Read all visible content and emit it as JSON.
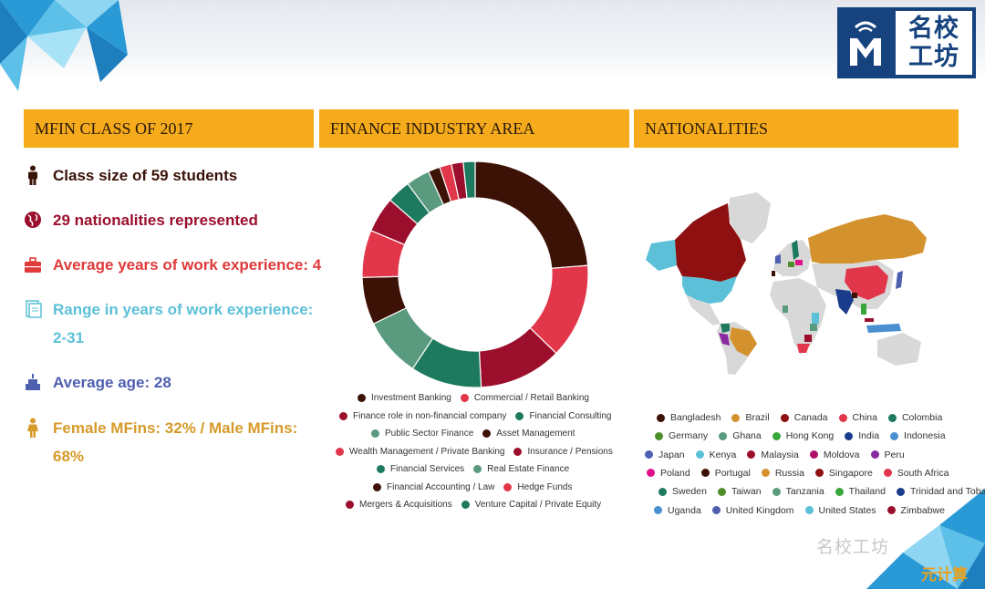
{
  "logo": {
    "line1": "名校",
    "line2": "工坊"
  },
  "sections": {
    "class": "MFIN CLASS OF 2017",
    "industry": "FINANCE INDUSTRY AREA",
    "nationalities": "NATIONALITIES"
  },
  "stats": [
    {
      "icon": "person-icon",
      "color": "#3a1208",
      "line1": "Class size of 59 students",
      "line2": ""
    },
    {
      "icon": "globe-icon",
      "color": "#9c0f2c",
      "line1": "29 nationalities represented",
      "line2": ""
    },
    {
      "icon": "briefcase-icon",
      "color": "#e03a3a",
      "line1": "Average years of work experience: 4",
      "line2": ""
    },
    {
      "icon": "document-icon",
      "color": "#5cc0d8",
      "line1": "Range in years of work experience:",
      "line2": "2-31"
    },
    {
      "icon": "cake-icon",
      "color": "#4f5fb0",
      "line1": "Average age: 28",
      "line2": ""
    },
    {
      "icon": "female-icon",
      "color": "#d69a2a",
      "line1": "Female MFins: 32% / Male MFins:",
      "line2": "68%"
    }
  ],
  "chart_data": {
    "type": "pie",
    "title": "",
    "categories": [
      "Investment Banking",
      "Commercial / Retail Banking",
      "Finance role in non-financial company",
      "Financial Consulting",
      "Public Sector Finance",
      "Asset Management",
      "Wealth Management / Private Banking",
      "Insurance / Pensions",
      "Financial Services",
      "Real Estate Finance",
      "Financial Accounting / Law",
      "Hedge Funds",
      "Mergers & Acquisitions",
      "Venture Capital / Private Equity"
    ],
    "values": [
      14,
      8,
      7,
      6,
      5,
      4,
      4,
      3,
      2,
      2,
      1,
      1,
      1,
      1
    ],
    "colors": [
      "#3d1206",
      "#e2374a",
      "#9c0f2c",
      "#1d7a5e",
      "#5a9a7e",
      "#3d1206",
      "#e2374a",
      "#9c0f2c",
      "#1d7a5e",
      "#5a9a7e",
      "#3d1206",
      "#e2374a",
      "#9c0f2c",
      "#1d7a5e"
    ],
    "legend_placement": "bottom"
  },
  "nationalities": {
    "items": [
      {
        "name": "Bangladesh",
        "color": "#3d1206"
      },
      {
        "name": "Brazil",
        "color": "#d4922e"
      },
      {
        "name": "Canada",
        "color": "#8e1010"
      },
      {
        "name": "China",
        "color": "#e2374a"
      },
      {
        "name": "Colombia",
        "color": "#1d7a5e"
      },
      {
        "name": "Germany",
        "color": "#4f8f2a"
      },
      {
        "name": "Ghana",
        "color": "#5a9a7e"
      },
      {
        "name": "Hong Kong",
        "color": "#39a63b"
      },
      {
        "name": "India",
        "color": "#1a3c8a"
      },
      {
        "name": "Indonesia",
        "color": "#4a8fd0"
      },
      {
        "name": "Japan",
        "color": "#4f5fb0"
      },
      {
        "name": "Kenya",
        "color": "#5cc0d8"
      },
      {
        "name": "Malaysia",
        "color": "#9c0f2c"
      },
      {
        "name": "Moldova",
        "color": "#b0106a"
      },
      {
        "name": "Peru",
        "color": "#8a2aa0"
      },
      {
        "name": "Poland",
        "color": "#e0108a"
      },
      {
        "name": "Portugal",
        "color": "#3d1206"
      },
      {
        "name": "Russia",
        "color": "#d4922e"
      },
      {
        "name": "Singapore",
        "color": "#8e1010"
      },
      {
        "name": "South Africa",
        "color": "#e2374a"
      },
      {
        "name": "Sweden",
        "color": "#1d7a5e"
      },
      {
        "name": "Taiwan",
        "color": "#4f8f2a"
      },
      {
        "name": "Tanzania",
        "color": "#5a9a7e"
      },
      {
        "name": "Thailand",
        "color": "#39a63b"
      },
      {
        "name": "Trinidad and Tobago",
        "color": "#1a3c8a"
      },
      {
        "name": "Uganda",
        "color": "#4a8fd0"
      },
      {
        "name": "United Kingdom",
        "color": "#4f5fb0"
      },
      {
        "name": "United States",
        "color": "#5cc0d8"
      },
      {
        "name": "Zimbabwe",
        "color": "#9c0f2c"
      }
    ],
    "map_colors": {
      "land": "#d8d8d8",
      "canada": "#8e1010",
      "usa": "#5cc0d8",
      "russia": "#d4922e",
      "brazil": "#d4922e",
      "china": "#e2374a",
      "india": "#1a3c8a"
    }
  },
  "watermark": {
    "text": "名校工坊",
    "sub": "元计算"
  }
}
